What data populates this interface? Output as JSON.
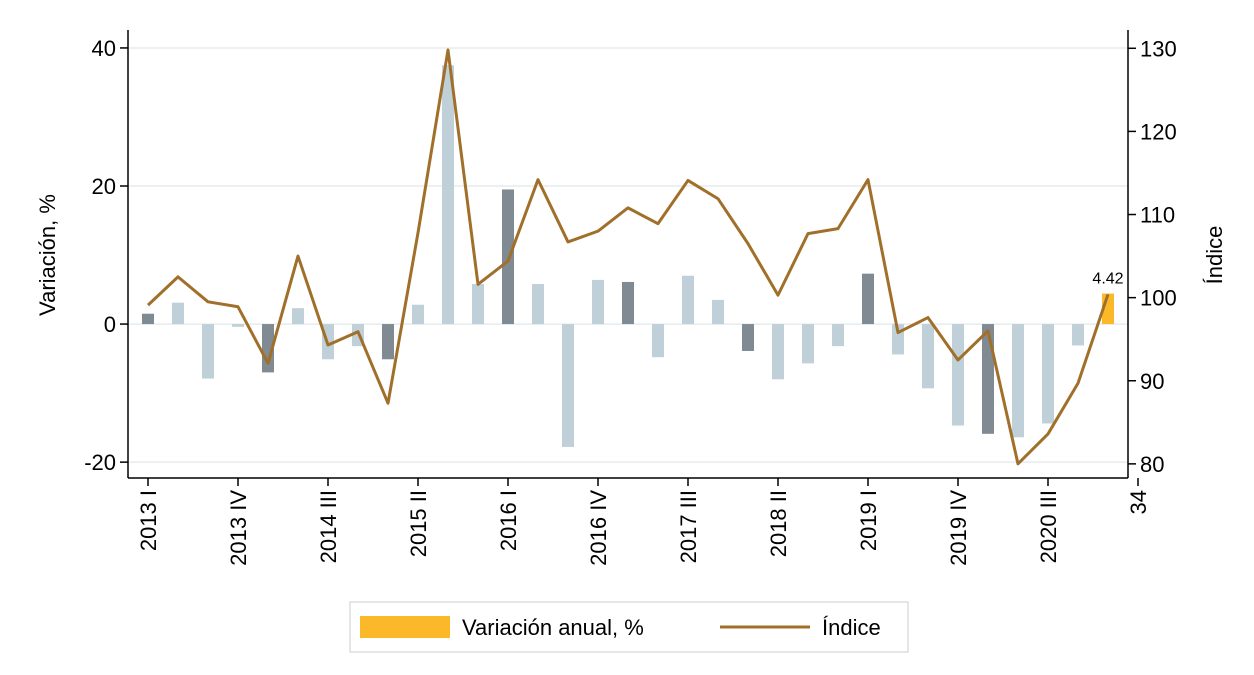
{
  "chart_data": {
    "type": "bar",
    "categories": [
      "2013 I",
      null,
      null,
      "2013 IV",
      null,
      null,
      "2014 III",
      null,
      null,
      "2015 II",
      null,
      null,
      "2016 I",
      null,
      null,
      "2016 IV",
      null,
      null,
      "2017 III",
      null,
      null,
      "2018 II",
      null,
      null,
      "2019 I",
      null,
      null,
      "2019 IV",
      null,
      null,
      "2020 III",
      null,
      null,
      "34"
    ],
    "series": [
      {
        "name": "Variación anual, %",
        "color": "#fbb829",
        "colors": [
          "#7f8a92",
          "#bfd0d9",
          "#bfd0d9",
          "#bfd0d9",
          "#7f8a92",
          "#bfd0d9",
          "#bfd0d9",
          "#bfd0d9",
          "#7f8a92",
          "#bfd0d9",
          "#bfd0d9",
          "#bfd0d9",
          "#7f8a92",
          "#bfd0d9",
          "#bfd0d9",
          "#bfd0d9",
          "#7f8a92",
          "#bfd0d9",
          "#bfd0d9",
          "#bfd0d9",
          "#7f8a92",
          "#bfd0d9",
          "#bfd0d9",
          "#bfd0d9",
          "#7f8a92",
          "#bfd0d9",
          "#bfd0d9",
          "#bfd0d9",
          "#7f8a92",
          "#bfd0d9",
          "#bfd0d9",
          "#bfd0d9",
          "#fbb829",
          null
        ],
        "values": [
          1.5,
          3.1,
          -7.9,
          -0.4,
          -7,
          2.3,
          -5.1,
          -3.2,
          -5.1,
          2.8,
          37.5,
          5.8,
          19.5,
          5.8,
          -17.8,
          6.4,
          6.1,
          -4.8,
          7,
          3.5,
          -3.9,
          -8,
          -5.7,
          -3.2,
          7.3,
          -4.4,
          -9.3,
          -14.7,
          -15.9,
          -16.4,
          -14.4,
          -3.1,
          4.42,
          null
        ],
        "value_labels": [
          null,
          null,
          null,
          null,
          null,
          null,
          null,
          null,
          null,
          null,
          null,
          null,
          null,
          null,
          null,
          null,
          null,
          null,
          null,
          null,
          null,
          null,
          null,
          null,
          null,
          null,
          null,
          null,
          null,
          null,
          null,
          null,
          "4.42",
          null
        ]
      },
      {
        "name": "Índice",
        "color": "#a0702a",
        "type": "line",
        "axis": "y2",
        "values": [
          99.1,
          102.5,
          99.5,
          98.9,
          92.1,
          105,
          94.3,
          95.9,
          87.3,
          107.8,
          129.8,
          101.6,
          104.4,
          114.2,
          106.7,
          108,
          110.8,
          108.9,
          114.1,
          111.9,
          106.5,
          100.3,
          107.7,
          108.3,
          114.2,
          95.8,
          97.6,
          92.5,
          96,
          80,
          83.6,
          89.7,
          100.4,
          null
        ]
      }
    ],
    "ylabel": "Variación, %",
    "y2label": "Índice",
    "ylim": [
      -22.3,
      42.6
    ],
    "yticks": [
      -20,
      0,
      20,
      40
    ],
    "y2lim": [
      78.3,
      132.2
    ],
    "y2ticks": [
      80,
      90,
      100,
      110,
      120,
      130
    ],
    "grid": true,
    "legend": "bottom"
  }
}
